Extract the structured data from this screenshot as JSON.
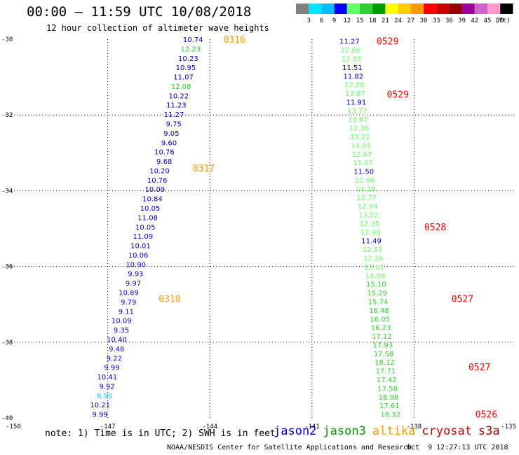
{
  "header": {
    "title": "00:00 – 11:59 UTC 10/08/2018",
    "subtitle": "12 hour collection of altimeter wave heights"
  },
  "colorbar": {
    "unit": "(ft)",
    "thresholds": [
      "3",
      "6",
      "9",
      "12",
      "15",
      "18",
      "21",
      "24",
      "27",
      "30",
      "33",
      "36",
      "39",
      "42",
      "45",
      "70"
    ],
    "colors": [
      "#808080",
      "#00e5ff",
      "#00bfff",
      "#0000ff",
      "#66ff66",
      "#33cc33",
      "#009900",
      "#ffff00",
      "#ffcc00",
      "#ff9900",
      "#ff0000",
      "#cc0000",
      "#990000",
      "#990099",
      "#cc66cc",
      "#ff99cc",
      "#000000"
    ]
  },
  "footer": {
    "note": "note: 1) Time is in UTC; 2) SWH is in feet",
    "legend": [
      {
        "name": "jason2",
        "color": "#0000cc"
      },
      {
        "name": "jason3",
        "color": "#009900"
      },
      {
        "name": "altika",
        "color": "#ff9900"
      },
      {
        "name": "cryosat",
        "color": "#cc0000"
      },
      {
        "name": "s3a",
        "color": "#990000"
      }
    ],
    "credit": "NOAA/NESDIS Center for Satellite Applications and Research",
    "timestamp": "Oct  9 12:27:13 UTC 2018"
  },
  "chart_data": {
    "type": "scatter",
    "xlim": [
      -150,
      -135
    ],
    "ylim": [
      -40,
      -30
    ],
    "x_ticks": [
      "-150",
      "-147",
      "-144",
      "-141",
      "-138",
      "-135"
    ],
    "y_ticks": [
      "-30",
      "-32",
      "-34",
      "-36",
      "-38",
      "-40"
    ],
    "grid": "dotted",
    "time_labels": [
      {
        "text": "0316",
        "x": -143.6,
        "y": -30.0,
        "color": "#ff9900"
      },
      {
        "text": "0317",
        "x": -144.5,
        "y": -33.4,
        "color": "#ff9900"
      },
      {
        "text": "0318",
        "x": -145.5,
        "y": -36.85,
        "color": "#ff9900"
      },
      {
        "text": "0529",
        "x": -139.1,
        "y": -30.05,
        "color": "#ff0000"
      },
      {
        "text": "0529",
        "x": -138.8,
        "y": -31.45,
        "color": "#ff0000"
      },
      {
        "text": "0528",
        "x": -137.7,
        "y": -34.95,
        "color": "#ff0000"
      },
      {
        "text": "0527",
        "x": -136.9,
        "y": -36.85,
        "color": "#ff0000"
      },
      {
        "text": "0527",
        "x": -136.4,
        "y": -38.65,
        "color": "#ff0000"
      },
      {
        "text": "0526",
        "x": -136.2,
        "y": -39.9,
        "color": "#ff0000"
      }
    ],
    "series": [
      {
        "name": "altika",
        "x_start": -144.2,
        "x_end": -147.0,
        "y_start": -30.0,
        "y_end": -39.9,
        "values": [
          {
            "v": "10.74",
            "c": "#0000cc"
          },
          {
            "v": "12.23",
            "c": "#33cc33"
          },
          {
            "v": "10.23",
            "c": "#0000cc"
          },
          {
            "v": "10.95",
            "c": "#0000cc"
          },
          {
            "v": "11.07",
            "c": "#0000cc"
          },
          {
            "v": "12.08",
            "c": "#33cc33"
          },
          {
            "v": "10.22",
            "c": "#0000cc"
          },
          {
            "v": "11.23",
            "c": "#0000cc"
          },
          {
            "v": "11.27",
            "c": "#0000cc"
          },
          {
            "v": "9.75",
            "c": "#0000cc"
          },
          {
            "v": "9.05",
            "c": "#0000cc"
          },
          {
            "v": "9.60",
            "c": "#0000cc"
          },
          {
            "v": "10.76",
            "c": "#0000cc"
          },
          {
            "v": "9.68",
            "c": "#0000cc"
          },
          {
            "v": "10.20",
            "c": "#0000cc"
          },
          {
            "v": "10.76",
            "c": "#0000cc"
          },
          {
            "v": "10.09",
            "c": "#0000cc"
          },
          {
            "v": "10.84",
            "c": "#0000cc"
          },
          {
            "v": "10.05",
            "c": "#0000cc"
          },
          {
            "v": "11.08",
            "c": "#0000cc"
          },
          {
            "v": "10.05",
            "c": "#0000cc"
          },
          {
            "v": "11.09",
            "c": "#0000cc"
          },
          {
            "v": "10.01",
            "c": "#0000cc"
          },
          {
            "v": "10.06",
            "c": "#0000cc"
          },
          {
            "v": "10.90",
            "c": "#0000cc"
          },
          {
            "v": "9.93",
            "c": "#0000cc"
          },
          {
            "v": "9.97",
            "c": "#0000cc"
          },
          {
            "v": "10.89",
            "c": "#0000cc"
          },
          {
            "v": "9.79",
            "c": "#0000cc"
          },
          {
            "v": "9.11",
            "c": "#0000cc"
          },
          {
            "v": "10.09",
            "c": "#0000cc"
          },
          {
            "v": "9.35",
            "c": "#0000cc"
          },
          {
            "v": "10.40",
            "c": "#0000cc"
          },
          {
            "v": "9.48",
            "c": "#0000cc"
          },
          {
            "v": "9.22",
            "c": "#0000cc"
          },
          {
            "v": "9.99",
            "c": "#0000cc"
          },
          {
            "v": "10.41",
            "c": "#0000cc"
          },
          {
            "v": "9.92",
            "c": "#0000cc"
          },
          {
            "v": "8.90",
            "c": "#00bfff"
          },
          {
            "v": "10.21",
            "c": "#0000cc"
          },
          {
            "v": "9.99",
            "c": "#0000cc"
          }
        ]
      },
      {
        "name": "cryosat",
        "x_start": -139.6,
        "x_end": -138.4,
        "y_start": -30.05,
        "y_end": -39.9,
        "values": [
          {
            "v": "11.27",
            "c": "#0000cc"
          },
          {
            "v": "12.86",
            "c": "#66ff66"
          },
          {
            "v": "12.55",
            "c": "#66ff66"
          },
          {
            "v": "11.51",
            "c": "#0000cc"
          },
          {
            "v": "11.82",
            "c": "#0000cc"
          },
          {
            "v": "12.28",
            "c": "#66ff66"
          },
          {
            "v": "13.87",
            "c": "#66ff66"
          },
          {
            "v": "11.91",
            "c": "#0000cc"
          },
          {
            "v": "13.77",
            "c": "#66ff66"
          },
          {
            "v": "13.67",
            "c": "#66ff66"
          },
          {
            "v": "12.36",
            "c": "#66ff66"
          },
          {
            "v": "13.22",
            "c": "#66ff66"
          },
          {
            "v": "14.03",
            "c": "#66ff66"
          },
          {
            "v": "12.07",
            "c": "#66ff66"
          },
          {
            "v": "13.07",
            "c": "#66ff66"
          },
          {
            "v": "11.50",
            "c": "#0000cc"
          },
          {
            "v": "12.96",
            "c": "#66ff66"
          },
          {
            "v": "14.18",
            "c": "#66ff66"
          },
          {
            "v": "12.77",
            "c": "#66ff66"
          },
          {
            "v": "12.94",
            "c": "#66ff66"
          },
          {
            "v": "13.22",
            "c": "#66ff66"
          },
          {
            "v": "12.35",
            "c": "#66ff66"
          },
          {
            "v": "12.99",
            "c": "#66ff66"
          },
          {
            "v": "11.49",
            "c": "#0000cc"
          },
          {
            "v": "12.83",
            "c": "#66ff66"
          },
          {
            "v": "12.26",
            "c": "#66ff66"
          },
          {
            "v": "13.01",
            "c": "#66ff66"
          },
          {
            "v": "14.08",
            "c": "#66ff66"
          },
          {
            "v": "15.10",
            "c": "#33cc33"
          },
          {
            "v": "15.29",
            "c": "#33cc33"
          },
          {
            "v": "15.74",
            "c": "#33cc33"
          },
          {
            "v": "16.48",
            "c": "#33cc33"
          },
          {
            "v": "16.05",
            "c": "#33cc33"
          },
          {
            "v": "16.23",
            "c": "#33cc33"
          },
          {
            "v": "17.12",
            "c": "#33cc33"
          },
          {
            "v": "17.93",
            "c": "#33cc33"
          },
          {
            "v": "17.58",
            "c": "#33cc33"
          },
          {
            "v": "18.12",
            "c": "#33cc33"
          },
          {
            "v": "17.71",
            "c": "#33cc33"
          },
          {
            "v": "17.42",
            "c": "#33cc33"
          },
          {
            "v": "17.58",
            "c": "#33cc33"
          },
          {
            "v": "18.98",
            "c": "#33cc33"
          },
          {
            "v": "17.61",
            "c": "#33cc33"
          },
          {
            "v": "18.32",
            "c": "#33cc33"
          }
        ]
      }
    ]
  }
}
